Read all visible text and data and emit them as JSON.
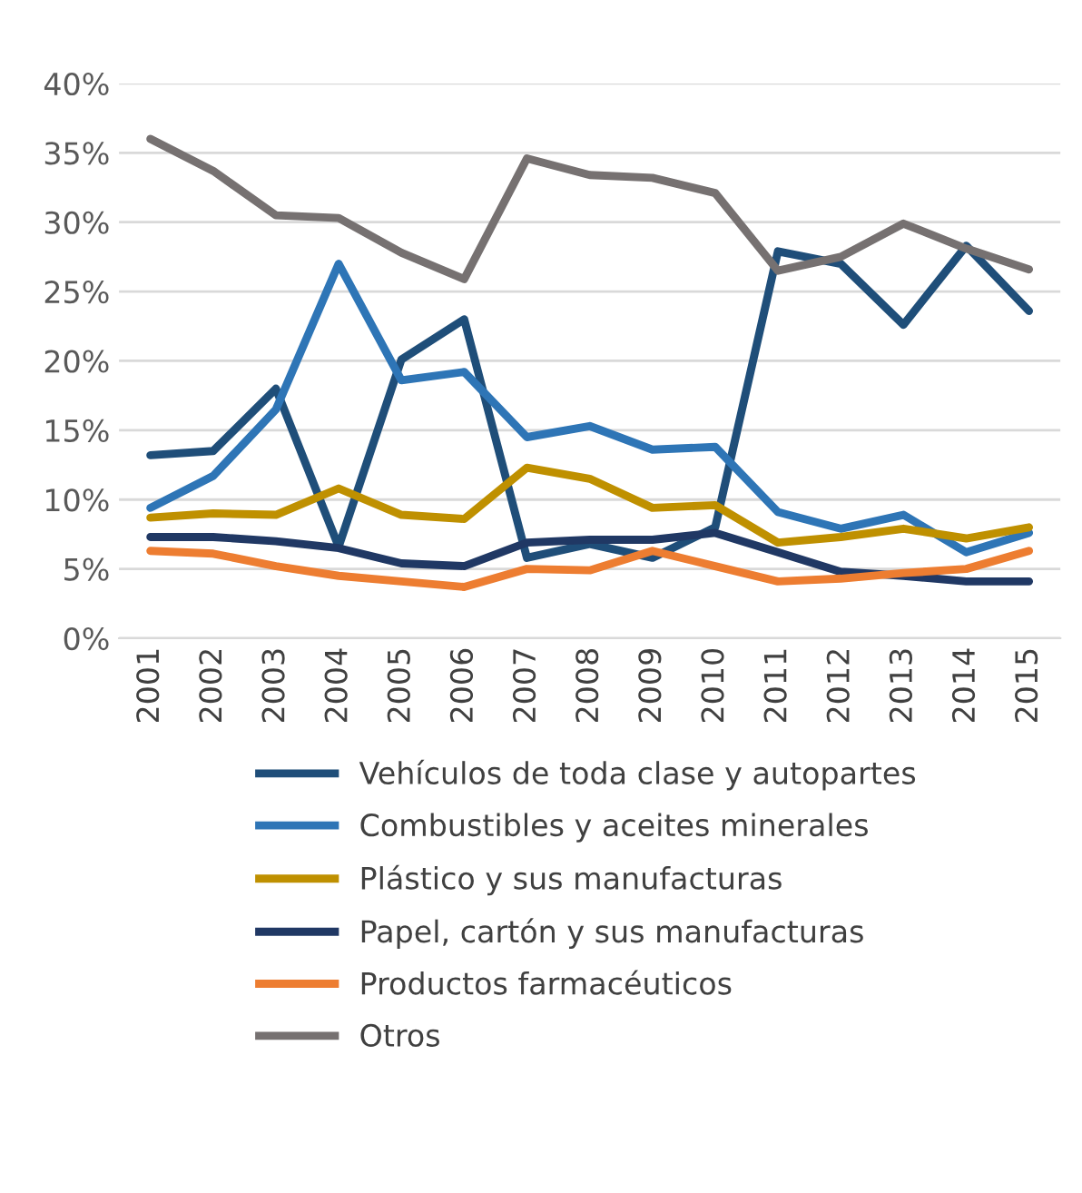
{
  "chart_data": {
    "type": "line",
    "categories": [
      "2001",
      "2002",
      "2003",
      "2004",
      "2005",
      "2006",
      "2007",
      "2008",
      "2009",
      "2010",
      "2011",
      "2012",
      "2013",
      "2014",
      "2015"
    ],
    "series": [
      {
        "name": "Vehículos de toda clase y autopartes",
        "color": "#1f4e79",
        "values": [
          13.2,
          13.5,
          18.0,
          6.6,
          20.1,
          23.0,
          5.8,
          6.8,
          5.8,
          8.0,
          27.9,
          27.0,
          22.6,
          28.3,
          23.6
        ]
      },
      {
        "name": "Combustibles y aceites minerales",
        "color": "#2e75b6",
        "values": [
          9.4,
          11.7,
          16.5,
          27.0,
          18.6,
          19.2,
          14.5,
          15.3,
          13.6,
          13.8,
          9.1,
          7.9,
          8.9,
          6.2,
          7.6
        ]
      },
      {
        "name": "Plástico y sus manufacturas",
        "color": "#bf9000",
        "values": [
          8.7,
          9.0,
          8.9,
          10.8,
          8.9,
          8.6,
          12.3,
          11.5,
          9.4,
          9.6,
          6.9,
          7.3,
          7.9,
          7.2,
          8.0
        ]
      },
      {
        "name": "Papel, cartón y sus manufacturas",
        "color": "#203864",
        "values": [
          7.3,
          7.3,
          7.0,
          6.5,
          5.4,
          5.2,
          6.9,
          7.1,
          7.1,
          7.6,
          6.2,
          4.8,
          4.5,
          4.1,
          4.1
        ]
      },
      {
        "name": "Productos farmacéuticos",
        "color": "#ed7d31",
        "values": [
          6.3,
          6.1,
          5.2,
          4.5,
          4.1,
          3.7,
          5.0,
          4.9,
          6.3,
          5.2,
          4.1,
          4.3,
          4.7,
          5.0,
          6.3
        ]
      },
      {
        "name": "Otros",
        "color": "#767171",
        "values": [
          36.0,
          33.7,
          30.5,
          30.3,
          27.8,
          25.9,
          34.6,
          33.4,
          33.2,
          32.1,
          26.5,
          27.5,
          29.9,
          28.1,
          26.6
        ]
      }
    ],
    "ylim": [
      0,
      40
    ],
    "yticks": [
      {
        "value": 0,
        "label": "0%"
      },
      {
        "value": 5,
        "label": "5%"
      },
      {
        "value": 10,
        "label": "10%"
      },
      {
        "value": 15,
        "label": "15%"
      },
      {
        "value": 20,
        "label": "20%"
      },
      {
        "value": 25,
        "label": "25%"
      },
      {
        "value": 30,
        "label": "30%"
      },
      {
        "value": 35,
        "label": "35%"
      },
      {
        "value": 40,
        "label": "40%"
      }
    ],
    "grid": "y",
    "legend": "bottom",
    "marker": "none",
    "line_style": "solid"
  }
}
